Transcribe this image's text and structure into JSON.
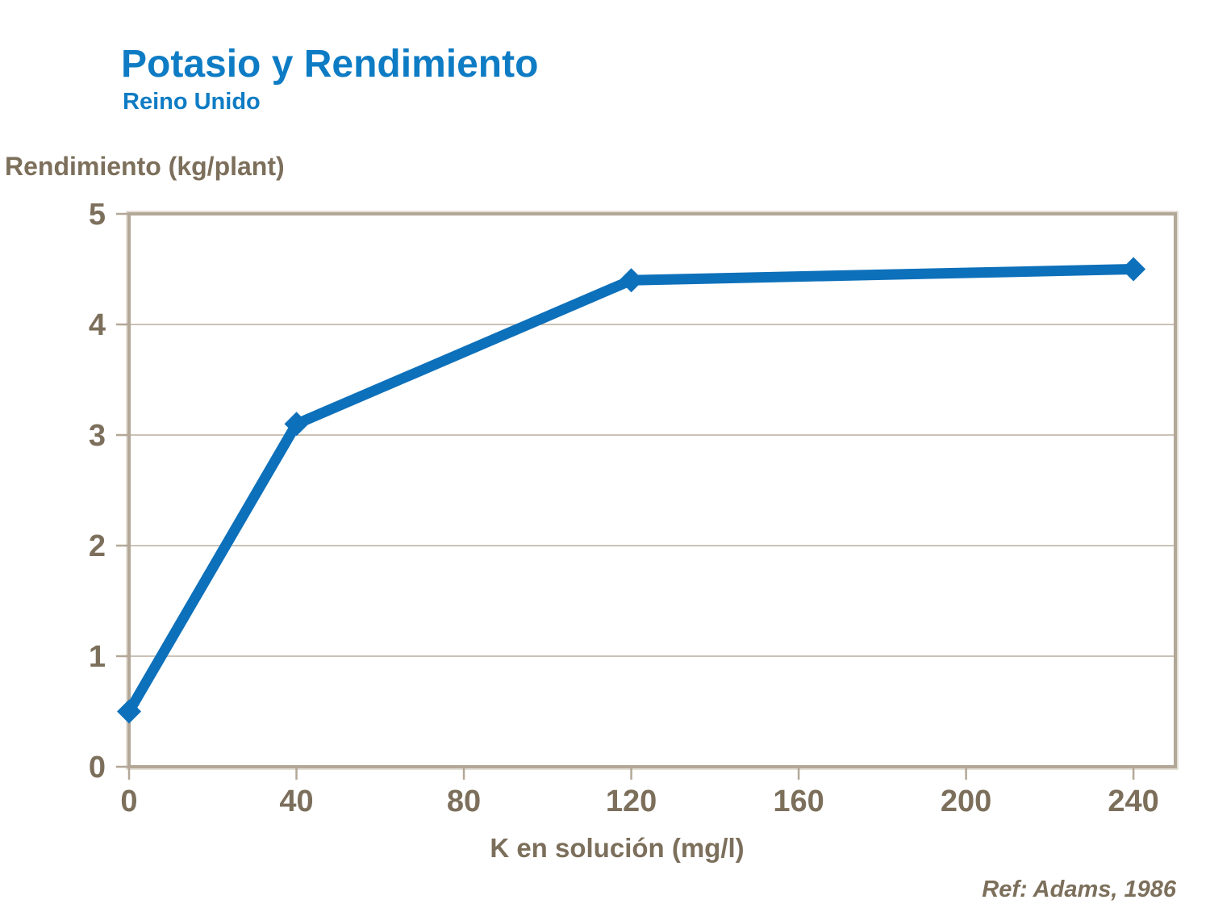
{
  "header": {
    "title": "Potasio y Rendimiento",
    "subtitle": "Reino Unido"
  },
  "chart_data": {
    "type": "line",
    "series": [
      {
        "name": "Rendimiento",
        "x": [
          0,
          40,
          120,
          240
        ],
        "y": [
          0.5,
          3.1,
          4.4,
          4.5
        ]
      }
    ],
    "title": "Potasio y Rendimiento",
    "subtitle": "Reino Unido",
    "xlabel": "K en solución (mg/l)",
    "ylabel": "Rendimiento (kg/plant)",
    "xlim": [
      0,
      250
    ],
    "ylim": [
      0,
      5
    ],
    "x_ticks": [
      0,
      40,
      80,
      120,
      160,
      200,
      240
    ],
    "y_ticks": [
      0,
      1,
      2,
      3,
      4,
      5
    ],
    "grid": "horizontal-only",
    "legend": "none",
    "marker": "diamond"
  },
  "footer": {
    "reference": "Ref: Adams, 1986"
  },
  "colors": {
    "title_blue": "#0E7CC4",
    "line_blue": "#0D70BA",
    "axis_text_brown": "#7C6F5B",
    "plot_border": "#B3A797",
    "plot_border_highlight": "#DCD5C9",
    "gridline": "#B9AE9E",
    "background": "#FFFFFF"
  }
}
